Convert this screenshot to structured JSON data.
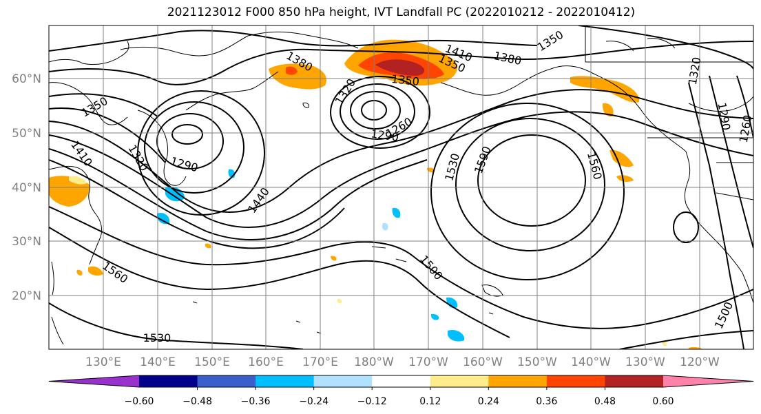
{
  "title": "2021123012 F000 850 hPa height, IVT Landfall PC (2022010212 - 2022010412)",
  "lat_labels": [
    "60°N",
    "50°N",
    "40°N",
    "30°N",
    "20°N"
  ],
  "lon_labels": [
    "130°E",
    "140°E",
    "150°E",
    "160°E",
    "170°E",
    "180°W",
    "170°W",
    "160°W",
    "150°W",
    "140°W",
    "130°W",
    "120°W"
  ],
  "contour_labels": [
    "1380",
    "1410",
    "1380",
    "1350",
    "1350",
    "1320",
    "1350",
    "1320",
    "1290",
    "1260",
    "1260",
    "1290",
    "1320",
    "1410",
    "1350",
    "1320",
    "1290",
    "1440",
    "1530",
    "1590",
    "1560",
    "1500",
    "1560",
    "1500",
    "1530"
  ],
  "colorbar": {
    "ticks": [
      "−0.60",
      "−0.48",
      "−0.36",
      "−0.24",
      "−0.12",
      "0.12",
      "0.24",
      "0.36",
      "0.48",
      "0.60"
    ],
    "colors": [
      "#9932cc",
      "#00008b",
      "#3a5fcd",
      "#00bfff",
      "#b0e2ff",
      "#ffffff",
      "#ffec8b",
      "#ffa500",
      "#ff4500",
      "#b22222",
      "#ff82ab"
    ]
  },
  "colors": {
    "contour": "#000000",
    "grid": "#808080",
    "frame": "#000000"
  }
}
